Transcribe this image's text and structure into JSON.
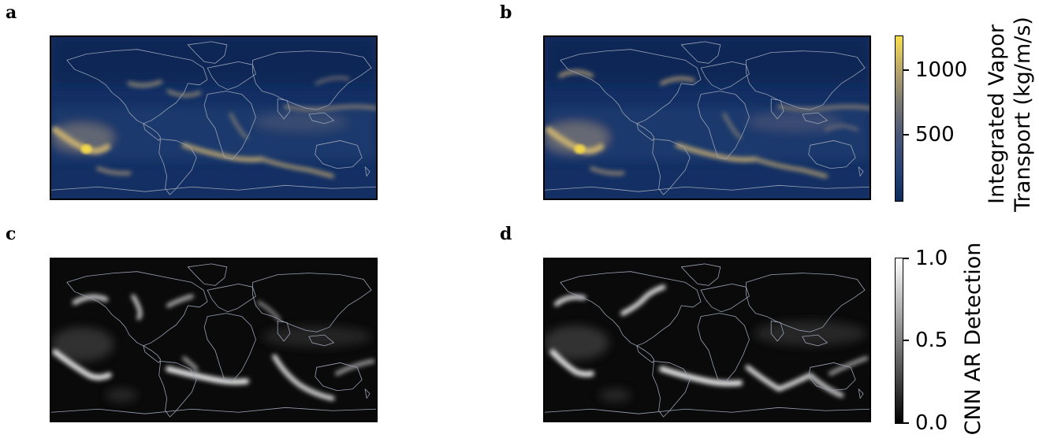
{
  "panels": {
    "a": {
      "letter": "a"
    },
    "b": {
      "letter": "b"
    },
    "c": {
      "letter": "c"
    },
    "d": {
      "letter": "d"
    }
  },
  "colorbars": {
    "ivt": {
      "title_line1": "Integrated Vapor",
      "title_line2": "Transport (kg/m/s)",
      "ticks": [
        "1000",
        "500"
      ],
      "colors": {
        "low": "#0e2a5c",
        "mid": "#7d7a72",
        "high": "#f5dd4a"
      }
    },
    "cnn": {
      "title": "CNN AR Detection",
      "ticks": [
        "1.0",
        "0.5",
        "0.0"
      ],
      "colors": {
        "low": "#000000",
        "high": "#ffffff"
      }
    }
  }
}
